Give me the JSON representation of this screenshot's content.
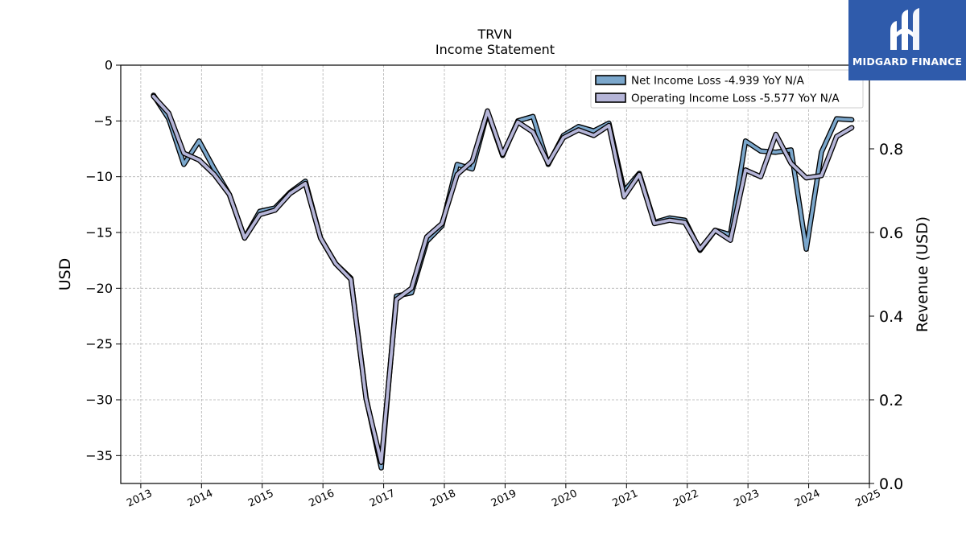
{
  "logo": {
    "text": "MIDGARD FINANCE",
    "icon": "stylized-m-pillars-icon",
    "color": "#2f5bab"
  },
  "chart_data": {
    "type": "line",
    "title": "TRVN",
    "subtitle": "Income Statement",
    "ylabel": "USD",
    "y2label": "Revenue (USD)",
    "xlabel": "",
    "ylim": [
      -37.5,
      0
    ],
    "y2lim": [
      0,
      1
    ],
    "yticks": [
      0,
      -5,
      -10,
      -15,
      -20,
      -25,
      -30,
      -35
    ],
    "y2ticks": [
      0.0,
      0.2,
      0.4,
      0.6,
      0.8
    ],
    "xlim": [
      2012.67,
      2025.0
    ],
    "xticks": [
      2013,
      2014,
      2015,
      2016,
      2017,
      2018,
      2019,
      2020,
      2021,
      2022,
      2023,
      2024,
      2025
    ],
    "grid": true,
    "legend_position": "top-right",
    "series": [
      {
        "name": "Net Income Loss  -4.939 YoY N/A",
        "color": "#7ba7cc",
        "x": [
          2013.21,
          2013.46,
          2013.71,
          2013.96,
          2014.21,
          2014.46,
          2014.71,
          2014.96,
          2015.21,
          2015.46,
          2015.71,
          2015.96,
          2016.21,
          2016.46,
          2016.71,
          2016.96,
          2017.21,
          2017.46,
          2017.71,
          2017.96,
          2018.21,
          2018.46,
          2018.71,
          2018.96,
          2019.21,
          2019.46,
          2019.71,
          2019.96,
          2020.21,
          2020.46,
          2020.71,
          2020.96,
          2021.21,
          2021.46,
          2021.71,
          2021.96,
          2022.21,
          2022.46,
          2022.71,
          2022.96,
          2023.21,
          2023.46,
          2023.71,
          2023.96,
          2024.21,
          2024.46,
          2024.71
        ],
        "values": [
          -2.7,
          -4.8,
          -8.9,
          -6.8,
          -9.3,
          -11.6,
          -15.5,
          -13.1,
          -12.8,
          -11.4,
          -10.4,
          -15.5,
          -17.8,
          -19.1,
          -29.8,
          -36.1,
          -20.7,
          -20.4,
          -15.8,
          -14.4,
          -8.9,
          -9.3,
          -4.2,
          -8.1,
          -5.0,
          -4.6,
          -8.9,
          -6.3,
          -5.5,
          -5.9,
          -5.2,
          -11.3,
          -9.7,
          -14.1,
          -13.7,
          -13.9,
          -16.6,
          -14.8,
          -15.2,
          -6.8,
          -7.7,
          -7.8,
          -7.6,
          -16.5,
          -7.8,
          -4.8,
          -4.9
        ]
      },
      {
        "name": "Operating Income Loss  -5.577 YoY N/A",
        "color": "#b5b5d8",
        "x": [
          2013.21,
          2013.46,
          2013.71,
          2013.96,
          2014.21,
          2014.46,
          2014.71,
          2014.96,
          2015.21,
          2015.46,
          2015.71,
          2015.96,
          2016.21,
          2016.46,
          2016.71,
          2016.96,
          2017.21,
          2017.46,
          2017.71,
          2017.96,
          2018.21,
          2018.46,
          2018.71,
          2018.96,
          2019.21,
          2019.46,
          2019.71,
          2019.96,
          2020.21,
          2020.46,
          2020.71,
          2020.96,
          2021.21,
          2021.46,
          2021.71,
          2021.96,
          2022.21,
          2022.46,
          2022.71,
          2022.96,
          2023.21,
          2023.46,
          2023.71,
          2023.96,
          2024.21,
          2024.46,
          2024.71
        ],
        "values": [
          -2.8,
          -4.3,
          -7.9,
          -8.5,
          -9.8,
          -11.6,
          -15.5,
          -13.4,
          -13.0,
          -11.5,
          -10.6,
          -15.5,
          -17.8,
          -19.2,
          -29.9,
          -35.6,
          -21.0,
          -20.0,
          -15.4,
          -14.2,
          -9.8,
          -8.6,
          -4.1,
          -8.0,
          -5.1,
          -6.0,
          -8.8,
          -6.5,
          -5.8,
          -6.3,
          -5.4,
          -11.8,
          -9.8,
          -14.2,
          -13.9,
          -14.1,
          -16.5,
          -14.8,
          -15.7,
          -9.4,
          -10.0,
          -6.2,
          -8.8,
          -10.1,
          -9.9,
          -6.4,
          -5.6
        ]
      }
    ]
  }
}
